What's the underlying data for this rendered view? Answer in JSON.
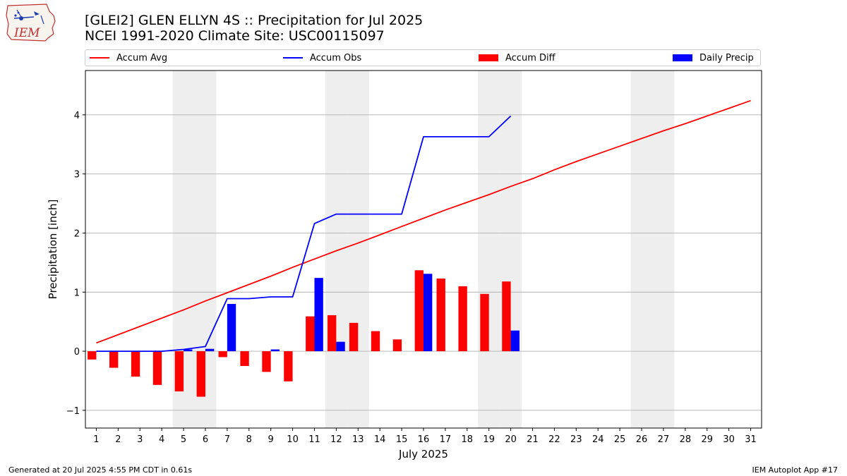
{
  "header": {
    "logo_text": "IEM",
    "title_line1": "[GLEI2] GLEN ELLYN 4S :: Precipitation for Jul 2025",
    "title_line2": "NCEI 1991-2020 Climate Site: USC00115097"
  },
  "legend": {
    "accum_avg": "Accum Avg",
    "accum_obs": "Accum Obs",
    "accum_diff": "Accum Diff",
    "daily_precip": "Daily Precip"
  },
  "footer": {
    "left": "Generated at 20 Jul 2025 4:55 PM CDT in 0.61s",
    "right": "IEM Autoplot App #17"
  },
  "colors": {
    "accum_avg": "#ff0000",
    "accum_obs": "#0000ff",
    "accum_diff": "#ff0000",
    "daily_precip": "#0000ff",
    "weekend_shade": "#eeeeee",
    "grid": "#b0b0b0"
  },
  "chart_data": {
    "type": "bar",
    "xlabel": "July 2025",
    "ylabel": "Precipitation [inch]",
    "ylim": [
      -1.3,
      4.75
    ],
    "xlim": [
      0.5,
      31.5
    ],
    "yticks": [
      -1,
      0,
      1,
      2,
      3,
      4
    ],
    "ytick_labels": [
      "−1",
      "0",
      "1",
      "2",
      "3",
      "4"
    ],
    "grid": "horizontal",
    "legend_position": "top",
    "days": [
      1,
      2,
      3,
      4,
      5,
      6,
      7,
      8,
      9,
      10,
      11,
      12,
      13,
      14,
      15,
      16,
      17,
      18,
      19,
      20,
      21,
      22,
      23,
      24,
      25,
      26,
      27,
      28,
      29,
      30,
      31
    ],
    "weekend_days": [
      5,
      6,
      12,
      13,
      19,
      20,
      26,
      27
    ],
    "series": [
      {
        "name": "Accum Avg",
        "type": "line",
        "x": [
          1,
          2,
          3,
          4,
          5,
          6,
          7,
          8,
          9,
          10,
          11,
          12,
          13,
          14,
          15,
          16,
          17,
          18,
          19,
          20,
          21,
          22,
          23,
          24,
          25,
          26,
          27,
          28,
          29,
          30,
          31
        ],
        "values": [
          0.14,
          0.28,
          0.42,
          0.56,
          0.7,
          0.85,
          0.99,
          1.13,
          1.27,
          1.42,
          1.56,
          1.7,
          1.83,
          1.97,
          2.11,
          2.25,
          2.39,
          2.52,
          2.65,
          2.79,
          2.92,
          3.07,
          3.21,
          3.34,
          3.47,
          3.6,
          3.73,
          3.85,
          3.98,
          4.11,
          4.24
        ]
      },
      {
        "name": "Accum Obs",
        "type": "line",
        "x": [
          1,
          2,
          3,
          4,
          5,
          6,
          7,
          8,
          9,
          10,
          11,
          12,
          13,
          14,
          15,
          16,
          17,
          18,
          19,
          20
        ],
        "values": [
          0,
          0,
          0,
          0,
          0.03,
          0.08,
          0.89,
          0.89,
          0.92,
          0.92,
          2.16,
          2.32,
          2.32,
          2.32,
          2.32,
          3.63,
          3.63,
          3.63,
          3.63,
          3.98
        ]
      },
      {
        "name": "Accum Diff",
        "type": "bar",
        "x": [
          1,
          2,
          3,
          4,
          5,
          6,
          7,
          8,
          9,
          10,
          11,
          12,
          13,
          14,
          15,
          16,
          17,
          18,
          19,
          20
        ],
        "values": [
          -0.14,
          -0.28,
          -0.43,
          -0.57,
          -0.68,
          -0.77,
          -0.1,
          -0.25,
          -0.35,
          -0.51,
          0.59,
          0.61,
          0.48,
          0.34,
          0.2,
          1.37,
          1.23,
          1.1,
          0.97,
          1.18
        ]
      },
      {
        "name": "Daily Precip",
        "type": "bar",
        "x": [
          1,
          2,
          3,
          4,
          5,
          6,
          7,
          8,
          9,
          10,
          11,
          12,
          13,
          14,
          15,
          16,
          17,
          18,
          19,
          20
        ],
        "values": [
          0,
          0,
          0,
          0,
          0.03,
          0.04,
          0.8,
          0,
          0.03,
          0,
          1.24,
          0.16,
          0,
          0,
          0,
          1.31,
          0,
          0,
          0,
          0.35
        ]
      }
    ]
  }
}
